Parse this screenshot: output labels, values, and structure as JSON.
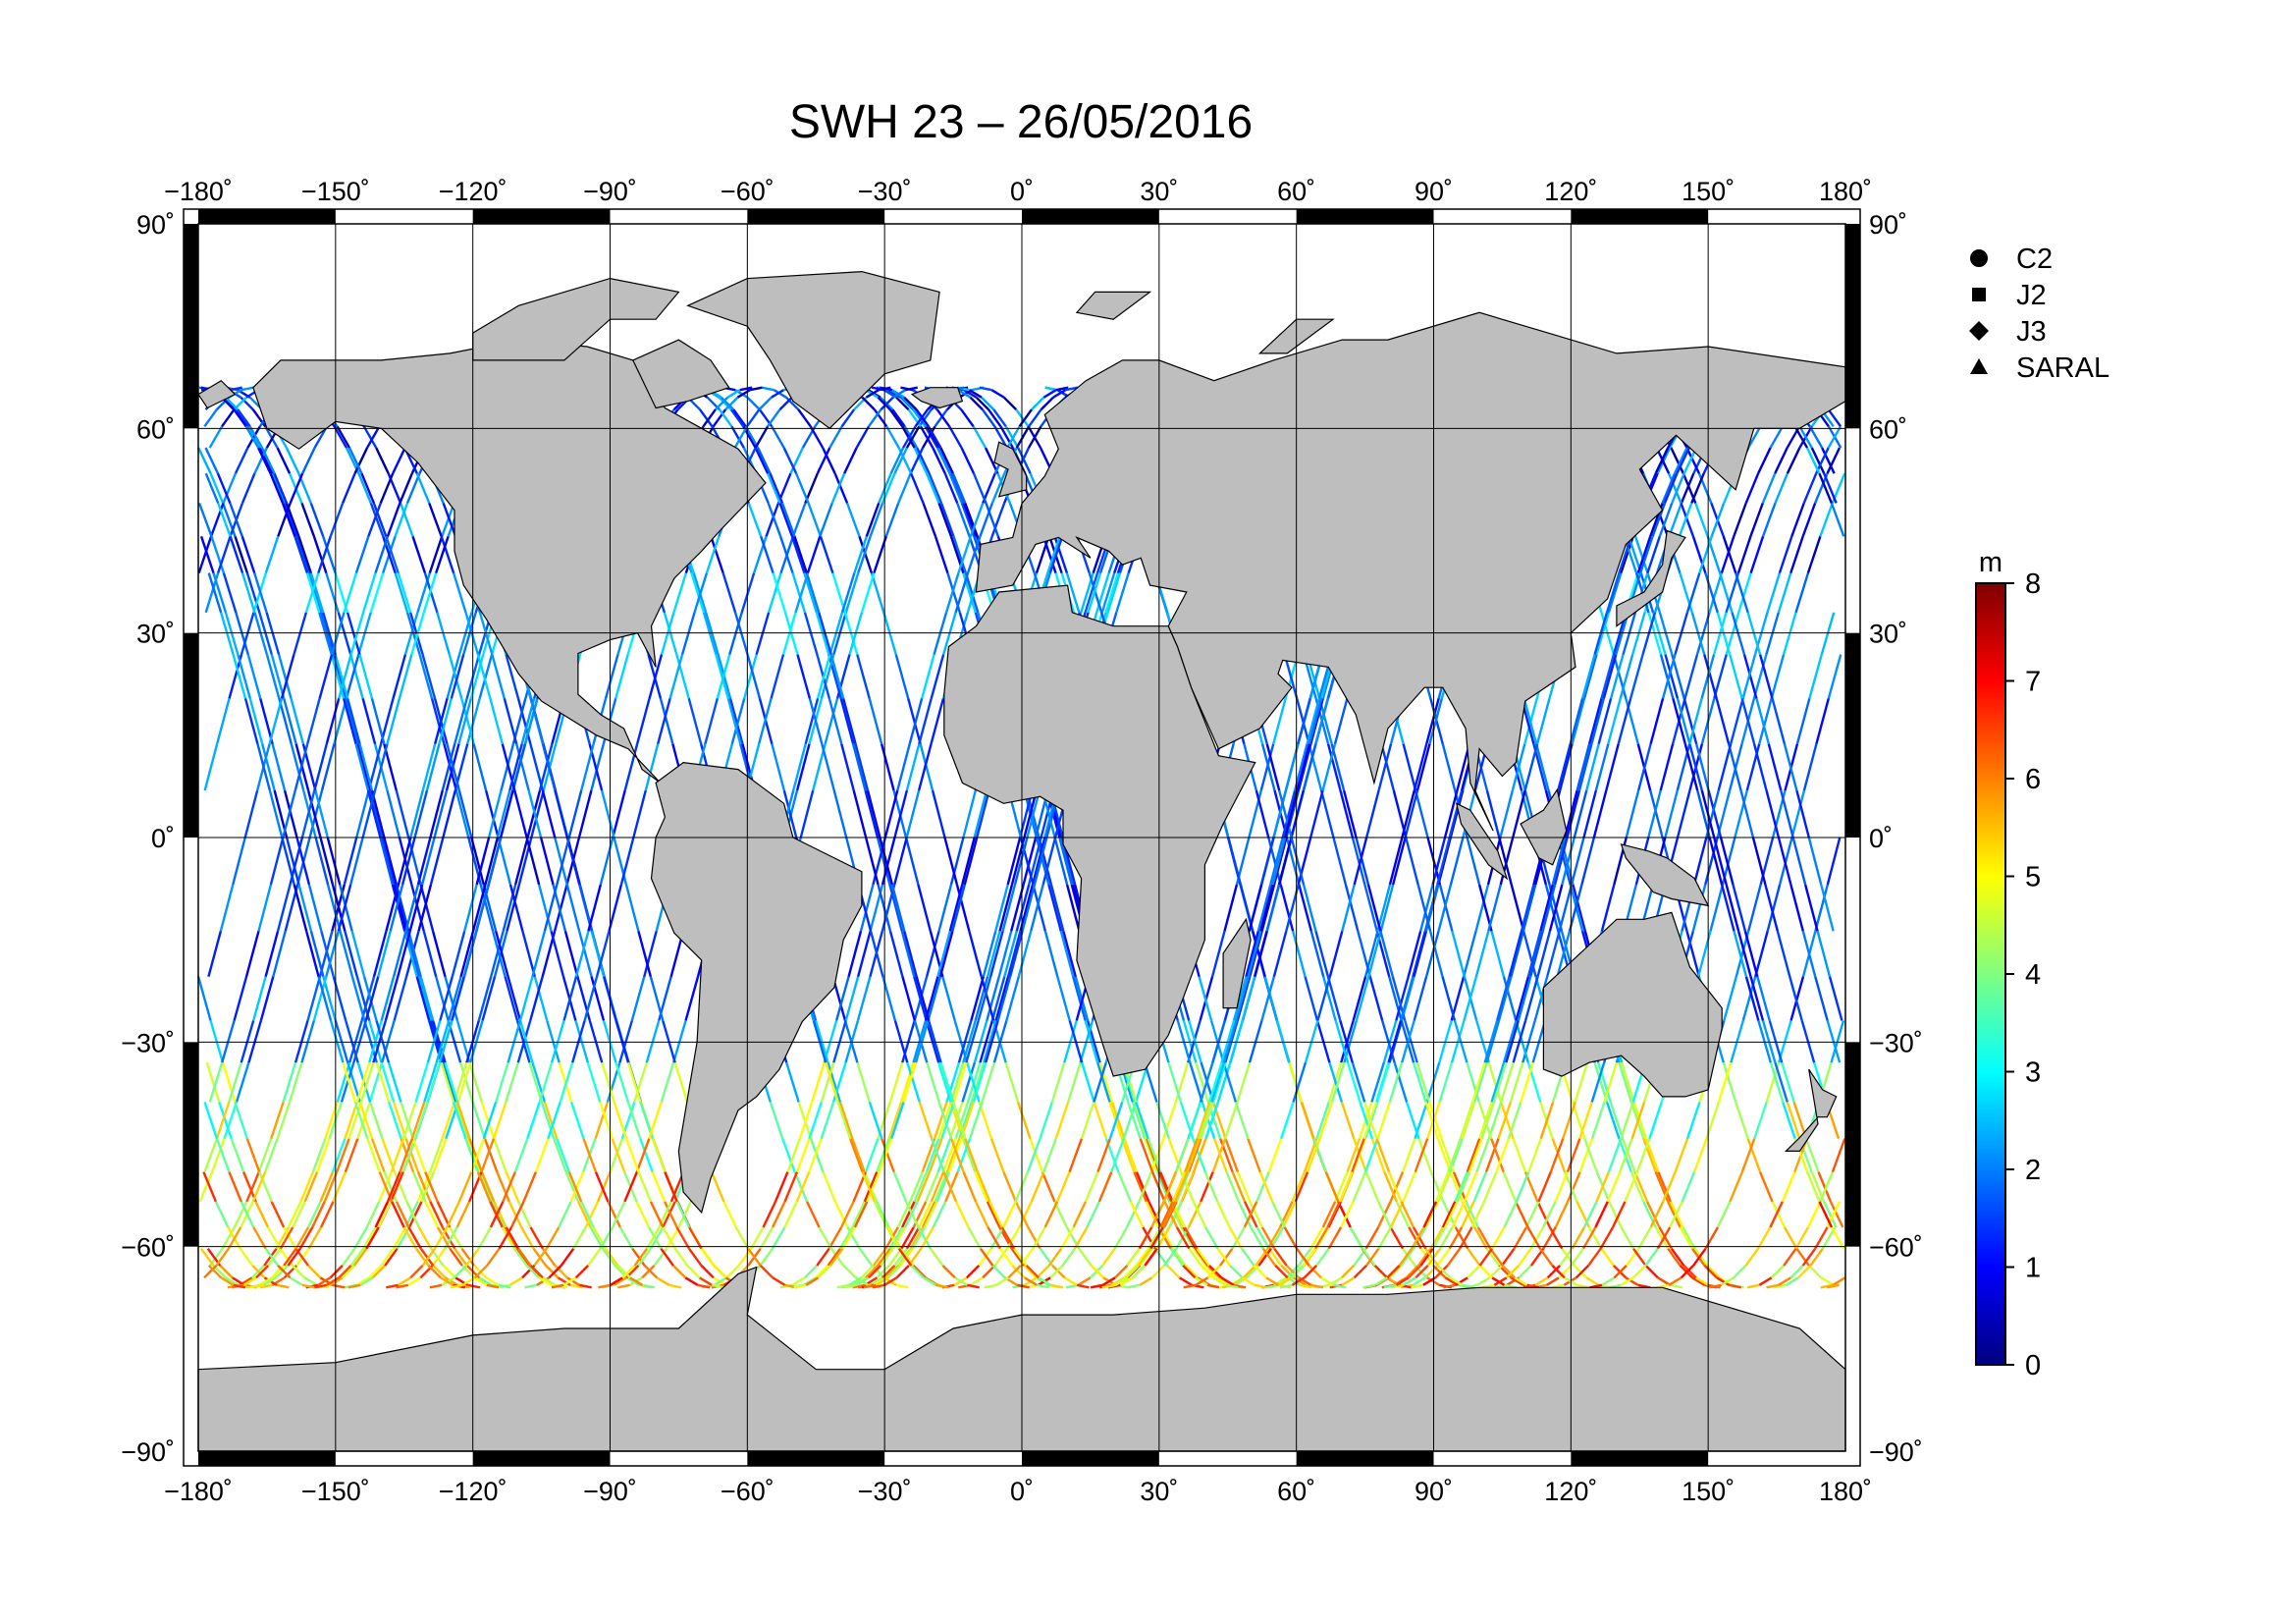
{
  "title": "SWH 23 – 26/05/2016",
  "map": {
    "projection": "equirectangular",
    "lon_range": [
      -180,
      180
    ],
    "lat_range": [
      -90,
      90
    ],
    "lon_ticks": [
      -180,
      -150,
      -120,
      -90,
      -60,
      -30,
      0,
      30,
      60,
      90,
      120,
      150,
      180
    ],
    "lat_ticks": [
      90,
      60,
      30,
      0,
      -30,
      -60,
      -90
    ],
    "lon_tick_labels": [
      "−180˚",
      "−150˚",
      "−120˚",
      "−90˚",
      "−60˚",
      "−30˚",
      "0˚",
      "30˚",
      "60˚",
      "90˚",
      "120˚",
      "150˚",
      "180˚"
    ],
    "lat_tick_labels": [
      "90˚",
      "60˚",
      "30˚",
      "0˚",
      "−30˚",
      "−60˚",
      "−90˚"
    ],
    "land_color": "#bebebe",
    "ocean_color": "#ffffff",
    "grid": true
  },
  "legend": {
    "items": [
      {
        "symbol": "circle",
        "label": "C2"
      },
      {
        "symbol": "square",
        "label": "J2"
      },
      {
        "symbol": "diamond",
        "label": "J3"
      },
      {
        "symbol": "triangle",
        "label": "SARAL"
      }
    ]
  },
  "colorbar": {
    "unit": "m",
    "min": 0,
    "max": 8,
    "tick_labels": [
      "0",
      "1",
      "2",
      "3",
      "4",
      "5",
      "6",
      "7",
      "8"
    ],
    "colormap": [
      "#00007f",
      "#0000ff",
      "#007fff",
      "#00ffff",
      "#7fff7f",
      "#ffff00",
      "#ff7f00",
      "#ff0000",
      "#7f0000"
    ]
  }
}
